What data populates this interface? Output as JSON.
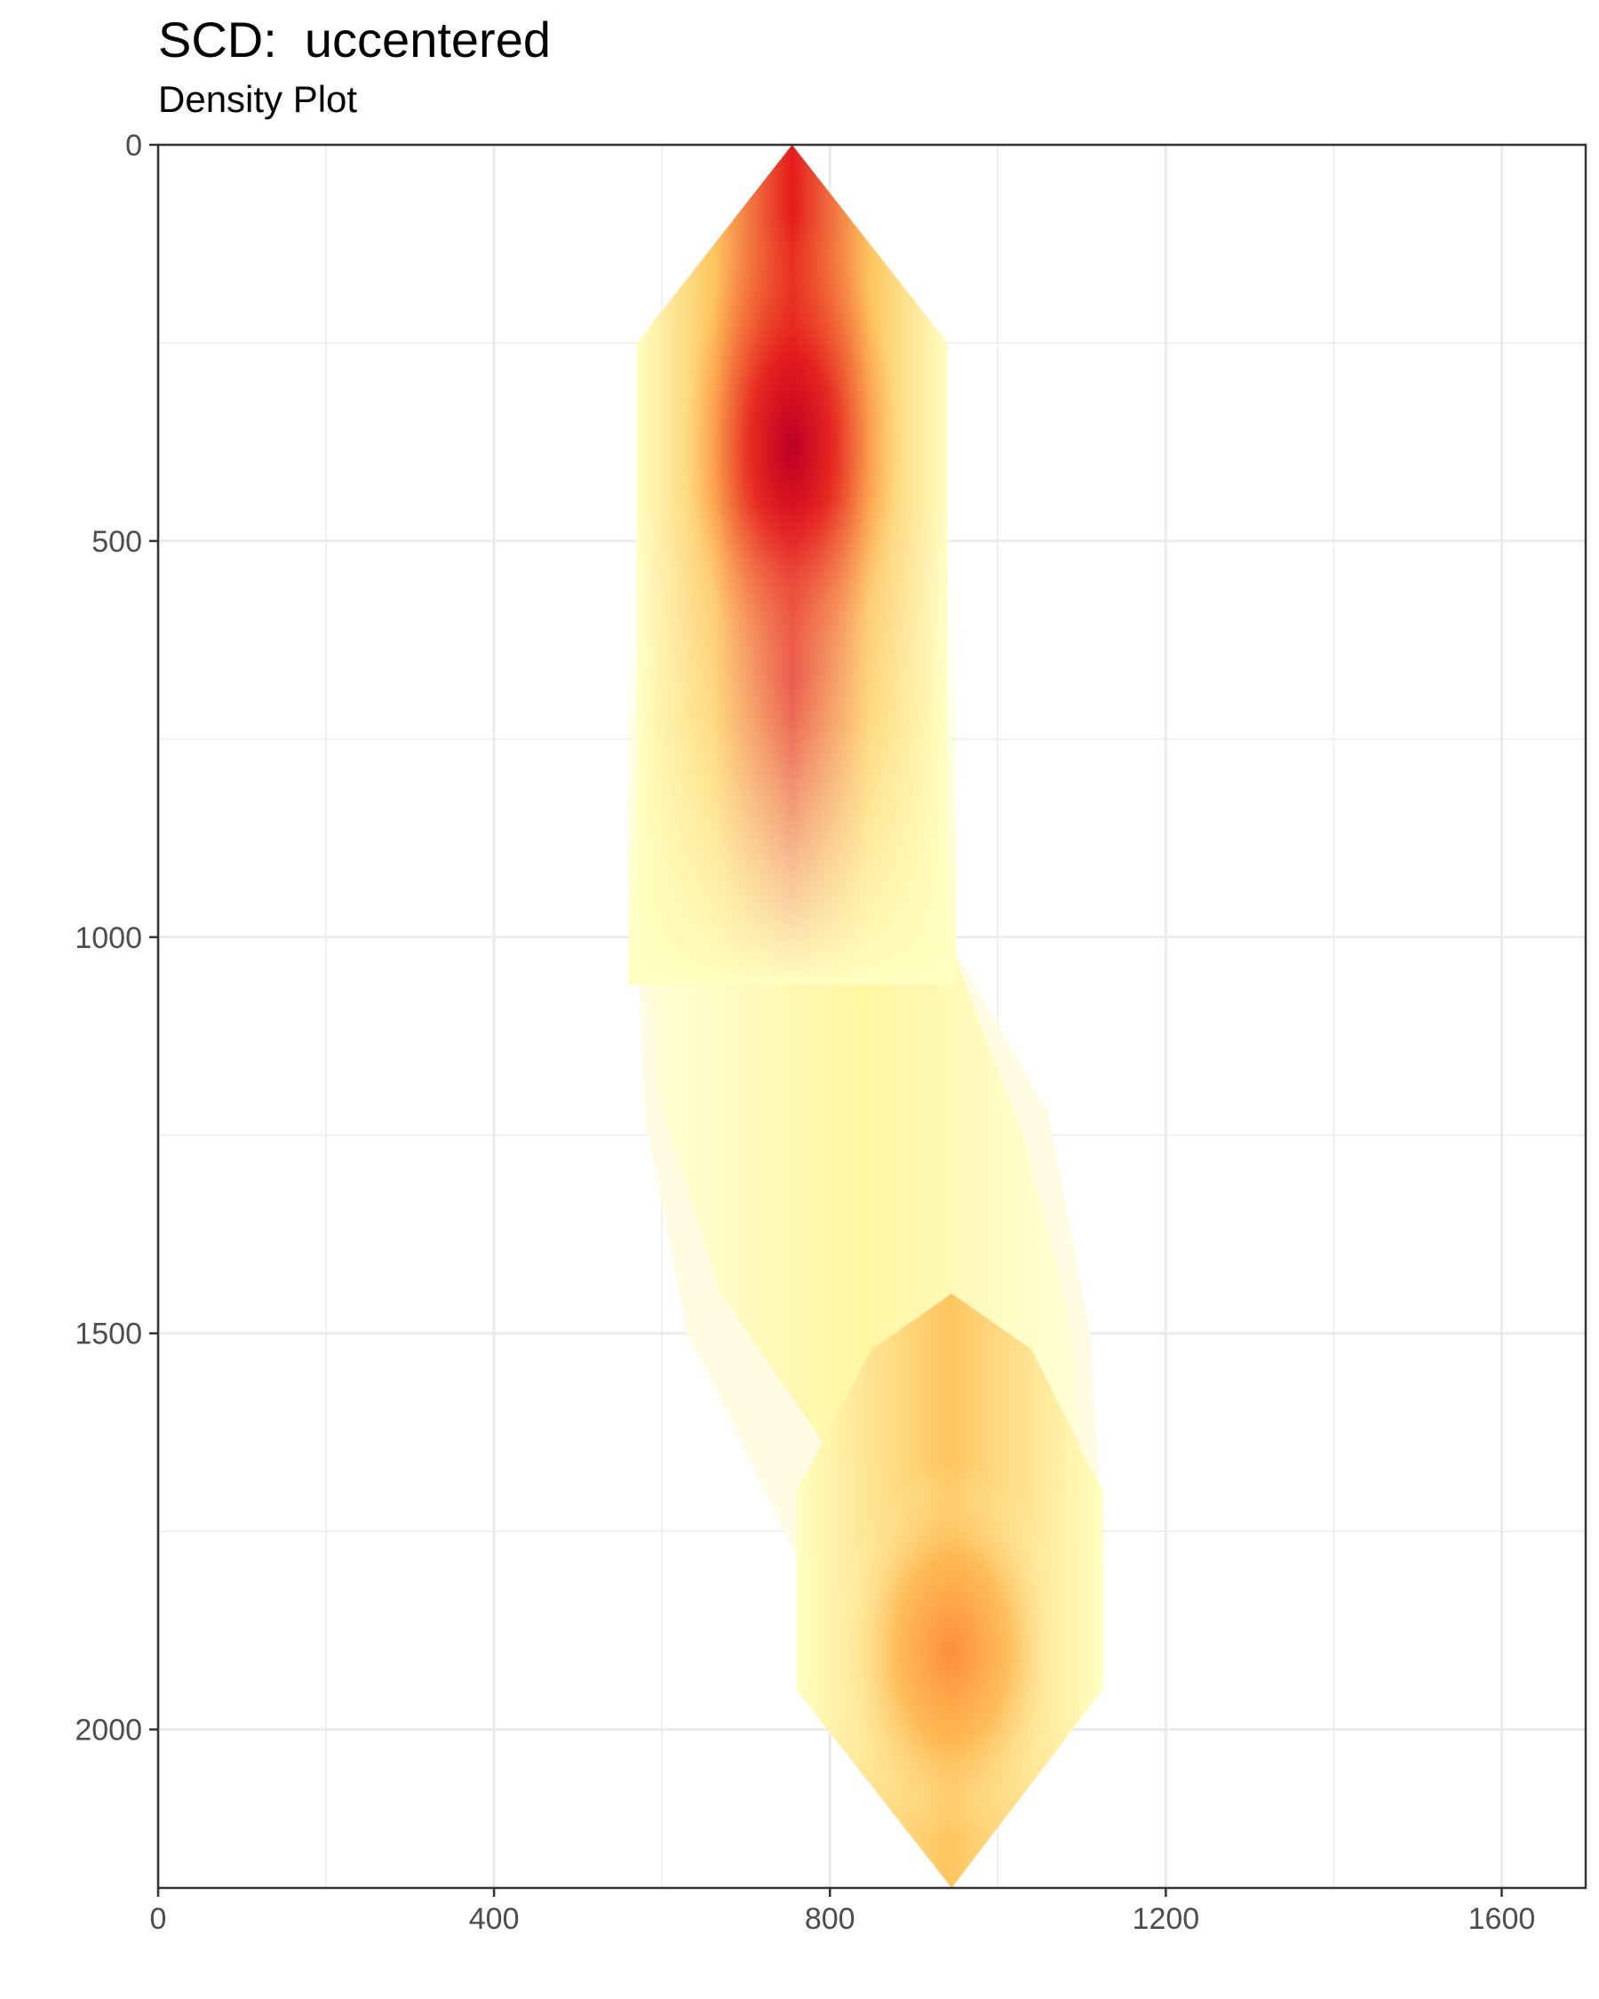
{
  "chart_data": {
    "type": "heatmap",
    "subtype": "2d-density",
    "title": "SCD:  uccentered",
    "subtitle": "Density Plot",
    "xlabel": "",
    "ylabel": "",
    "xlim": [
      0,
      1700
    ],
    "ylim": [
      2200,
      0
    ],
    "y_reversed": true,
    "x_ticks": [
      0,
      400,
      800,
      1200,
      1600
    ],
    "y_ticks": [
      0,
      500,
      1000,
      1500,
      2000
    ],
    "grid": true,
    "legend": "none",
    "colors": {
      "low": "#ffffbf",
      "mid": "#fd8d3c",
      "high": "#bd0026"
    },
    "density_points": [
      {
        "x": 755,
        "y": 250,
        "level": 1.0
      },
      {
        "x": 755,
        "y": 500,
        "level": 0.75
      },
      {
        "x": 755,
        "y": 800,
        "level": 0.45
      },
      {
        "x": 755,
        "y": 1100,
        "level": 0.25
      },
      {
        "x": 860,
        "y": 1450,
        "level": 0.2
      },
      {
        "x": 945,
        "y": 1700,
        "level": 0.3
      },
      {
        "x": 945,
        "y": 1950,
        "level": 0.45
      }
    ]
  }
}
